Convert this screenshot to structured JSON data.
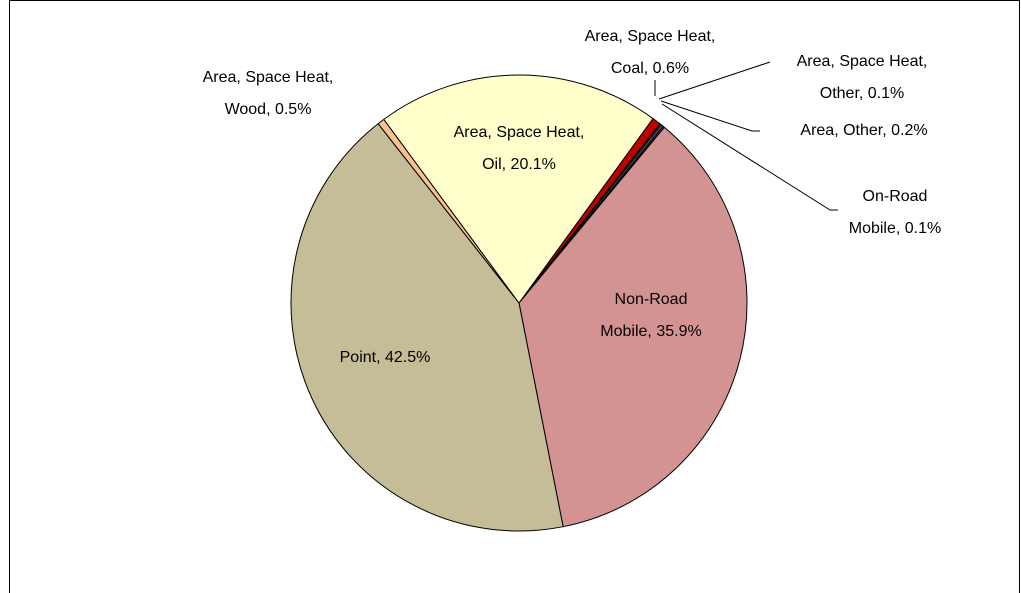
{
  "chart_data": {
    "type": "pie",
    "values": [
      0.6,
      0.1,
      0.2,
      0.1,
      35.9,
      42.5,
      0.5,
      20.1
    ],
    "value_labels": [
      "Area, Space Heat, Coal, 0.6%",
      "Area, Space Heat, Other, 0.1%",
      "Area, Other, 0.2%",
      "On-Road Mobile, 0.1%",
      "Non-Road Mobile, 35.9%",
      "Point, 42.5%",
      "Area, Space Heat, Wood, 0.5%",
      "Area, Space Heat, Oil, 20.1%"
    ],
    "colors": [
      "#c00000",
      "#7f1f1f",
      "#4a4a4a",
      "#8064a2",
      "#d49393",
      "#c4bd97",
      "#fac090",
      "#ffffcc"
    ]
  }
}
